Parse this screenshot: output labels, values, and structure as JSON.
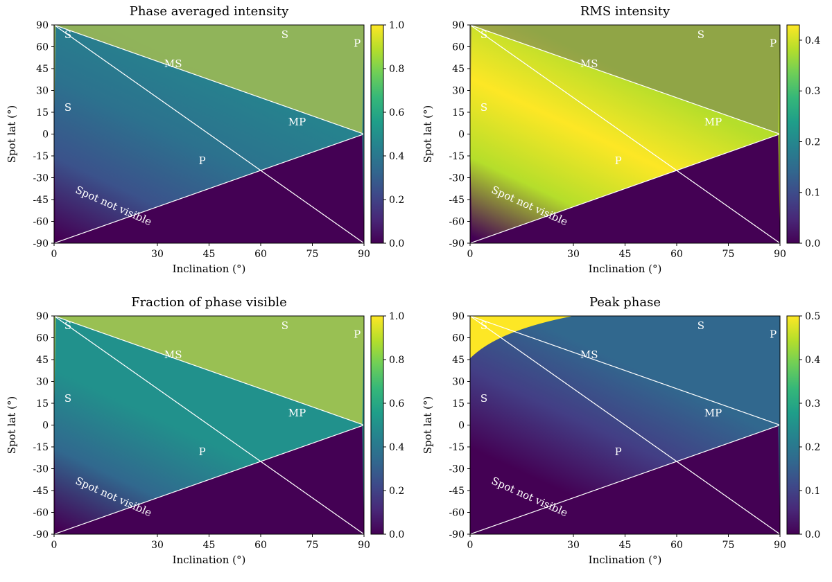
{
  "chart_data": [
    {
      "type": "heatmap",
      "title": "Phase averaged intensity",
      "xlabel": "Inclination (°)",
      "ylabel": "Spot lat (°)",
      "xlim": [
        0,
        90
      ],
      "ylim": [
        -90,
        90
      ],
      "xticks": [
        "0",
        "30",
        "45",
        "60",
        "75",
        "90"
      ],
      "yticks": [
        "90",
        "60",
        "45",
        "30",
        "15",
        "0",
        "-15",
        "-30",
        "-45",
        "-60",
        "-90"
      ],
      "colorbar": {
        "min": 0.0,
        "max": 1.0,
        "ticks": [
          "0.0",
          "0.2",
          "0.4",
          "0.6",
          "0.8",
          "1.0"
        ]
      },
      "regions": [
        {
          "label": "S",
          "x": 3,
          "y": 82
        },
        {
          "label": "S",
          "x": 3,
          "y": 22
        },
        {
          "label": "S",
          "x": 66,
          "y": 82
        },
        {
          "label": "P",
          "x": 87,
          "y": 75
        },
        {
          "label": "MS",
          "x": 32,
          "y": 58
        },
        {
          "label": "MP",
          "x": 68,
          "y": 10
        },
        {
          "label": "P",
          "x": 42,
          "y": -22
        }
      ],
      "annotation": "Spot not visible"
    },
    {
      "type": "heatmap",
      "title": "RMS intensity",
      "xlabel": "Inclination (°)",
      "ylabel": "Spot lat (°)",
      "xlim": [
        0,
        90
      ],
      "ylim": [
        -90,
        90
      ],
      "xticks": [
        "0",
        "30",
        "45",
        "60",
        "75",
        "90"
      ],
      "yticks": [
        "90",
        "60",
        "45",
        "30",
        "15",
        "0",
        "-15",
        "-30",
        "-45",
        "-60",
        "-90"
      ],
      "colorbar": {
        "min": 0.0,
        "max": 0.43,
        "ticks": [
          "0.0",
          "0.1",
          "0.2",
          "0.3",
          "0.4"
        ]
      },
      "regions": [
        {
          "label": "S",
          "x": 3,
          "y": 82
        },
        {
          "label": "S",
          "x": 3,
          "y": 22
        },
        {
          "label": "S",
          "x": 66,
          "y": 82
        },
        {
          "label": "P",
          "x": 87,
          "y": 75
        },
        {
          "label": "MS",
          "x": 32,
          "y": 58
        },
        {
          "label": "MP",
          "x": 68,
          "y": 10
        },
        {
          "label": "P",
          "x": 42,
          "y": -22
        }
      ],
      "annotation": "Spot not visible"
    },
    {
      "type": "heatmap",
      "title": "Fraction of phase visible",
      "xlabel": "Inclination (°)",
      "ylabel": "Spot lat (°)",
      "xlim": [
        0,
        90
      ],
      "ylim": [
        -90,
        90
      ],
      "xticks": [
        "0",
        "30",
        "45",
        "60",
        "75",
        "90"
      ],
      "yticks": [
        "90",
        "60",
        "45",
        "30",
        "15",
        "0",
        "-15",
        "-30",
        "-45",
        "-60",
        "-90"
      ],
      "colorbar": {
        "min": 0.0,
        "max": 1.0,
        "ticks": [
          "0.0",
          "0.2",
          "0.4",
          "0.6",
          "0.8",
          "1.0"
        ]
      },
      "regions": [
        {
          "label": "S",
          "x": 3,
          "y": 82
        },
        {
          "label": "S",
          "x": 3,
          "y": 22
        },
        {
          "label": "S",
          "x": 66,
          "y": 82
        },
        {
          "label": "P",
          "x": 87,
          "y": 75
        },
        {
          "label": "MS",
          "x": 32,
          "y": 58
        },
        {
          "label": "MP",
          "x": 68,
          "y": 10
        },
        {
          "label": "P",
          "x": 42,
          "y": -22
        }
      ],
      "annotation": "Spot not visible"
    },
    {
      "type": "heatmap",
      "title": "Peak phase",
      "xlabel": "Inclination (°)",
      "ylabel": "Spot lat (°)",
      "xlim": [
        0,
        90
      ],
      "ylim": [
        -90,
        90
      ],
      "xticks": [
        "0",
        "30",
        "45",
        "60",
        "75",
        "90"
      ],
      "yticks": [
        "90",
        "60",
        "45",
        "30",
        "15",
        "0",
        "-15",
        "-30",
        "-45",
        "-60",
        "-90"
      ],
      "colorbar": {
        "min": 0.0,
        "max": 0.5,
        "ticks": [
          "0.0",
          "0.1",
          "0.2",
          "0.3",
          "0.4",
          "0.5"
        ]
      },
      "regions": [
        {
          "label": "S",
          "x": 3,
          "y": 82
        },
        {
          "label": "S",
          "x": 3,
          "y": 22
        },
        {
          "label": "S",
          "x": 66,
          "y": 82
        },
        {
          "label": "P",
          "x": 87,
          "y": 75
        },
        {
          "label": "MS",
          "x": 32,
          "y": 58
        },
        {
          "label": "MP",
          "x": 68,
          "y": 10
        },
        {
          "label": "P",
          "x": 42,
          "y": -22
        }
      ],
      "annotation": "Spot not visible"
    }
  ],
  "colors": {
    "viridis": [
      "#440154",
      "#482878",
      "#3e4989",
      "#31688e",
      "#26828e",
      "#1f9e89",
      "#35b779",
      "#6ece58",
      "#b5de2b",
      "#fde725"
    ],
    "curve": "#ffffff"
  }
}
